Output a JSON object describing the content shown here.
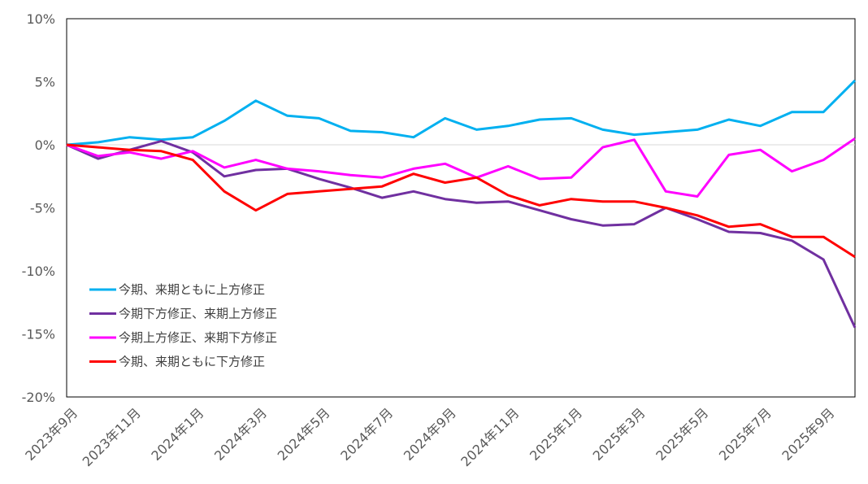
{
  "chart_data": {
    "type": "line",
    "title": "",
    "xlabel": "",
    "ylabel": "",
    "ylim": [
      -20,
      10
    ],
    "y_ticks": [
      "10%",
      "5%",
      "0%",
      "-5%",
      "-10%",
      "-15%",
      "-20%"
    ],
    "y_tick_values": [
      10,
      5,
      0,
      -5,
      -10,
      -15,
      -20
    ],
    "x": [
      "2023年9月",
      "2023年10月",
      "2023年11月",
      "2023年12月",
      "2024年1月",
      "2024年2月",
      "2024年3月",
      "2024年4月",
      "2024年5月",
      "2024年6月",
      "2024年7月",
      "2024年8月",
      "2024年9月",
      "2024年10月",
      "2024年11月",
      "2024年12月",
      "2025年1月",
      "2025年2月",
      "2025年3月",
      "2025年4月",
      "2025年5月",
      "2025年6月",
      "2025年7月",
      "2025年8月",
      "2025年9月",
      "2025年10月"
    ],
    "x_tick_labels": [
      "2023年9月",
      "2023年11月",
      "2024年1月",
      "2024年3月",
      "2024年5月",
      "2024年7月",
      "2024年9月",
      "2024年11月",
      "2025年1月",
      "2025年3月",
      "2025年5月",
      "2025年7月",
      "2025年9月"
    ],
    "grid": "zero line only",
    "legend_placement": "bottom-left inside",
    "series": [
      {
        "name": "今期、来期ともに上方修正",
        "color": "#00B0F0",
        "values": [
          0,
          0.2,
          0.6,
          0.4,
          0.6,
          1.9,
          3.5,
          2.3,
          2.1,
          1.1,
          1.0,
          0.6,
          2.1,
          1.2,
          1.5,
          2.0,
          2.1,
          1.2,
          0.8,
          1.0,
          1.2,
          2.0,
          1.5,
          2.6,
          2.6,
          5.1
        ]
      },
      {
        "name": "今期下方修正、来期上方修正",
        "color": "#7030A0",
        "values": [
          0,
          -1.1,
          -0.4,
          0.3,
          -0.6,
          -2.5,
          -2.0,
          -1.9,
          -2.7,
          -3.4,
          -4.2,
          -3.7,
          -4.3,
          -4.6,
          -4.5,
          -5.2,
          -5.9,
          -6.4,
          -6.3,
          -5.0,
          -5.9,
          -6.9,
          -7.0,
          -7.6,
          -9.1,
          -14.5
        ]
      },
      {
        "name": "今期上方修正、来期下方修正",
        "color": "#FF00FF",
        "values": [
          0,
          -0.9,
          -0.6,
          -1.1,
          -0.5,
          -1.8,
          -1.2,
          -1.9,
          -2.1,
          -2.4,
          -2.6,
          -1.9,
          -1.5,
          -2.6,
          -1.7,
          -2.7,
          -2.6,
          -0.2,
          0.4,
          -3.7,
          -4.1,
          -0.8,
          -0.4,
          -2.1,
          -1.2,
          0.5
        ]
      },
      {
        "name": "今期、来期ともに下方修正",
        "color": "#FF0000",
        "values": [
          0,
          -0.2,
          -0.4,
          -0.5,
          -1.2,
          -3.7,
          -5.2,
          -3.9,
          -3.7,
          -3.5,
          -3.3,
          -2.3,
          -3.0,
          -2.6,
          -4.0,
          -4.8,
          -4.3,
          -4.5,
          -4.5,
          -5.0,
          -5.6,
          -6.5,
          -6.3,
          -7.3,
          -7.3,
          -8.9
        ]
      }
    ]
  }
}
